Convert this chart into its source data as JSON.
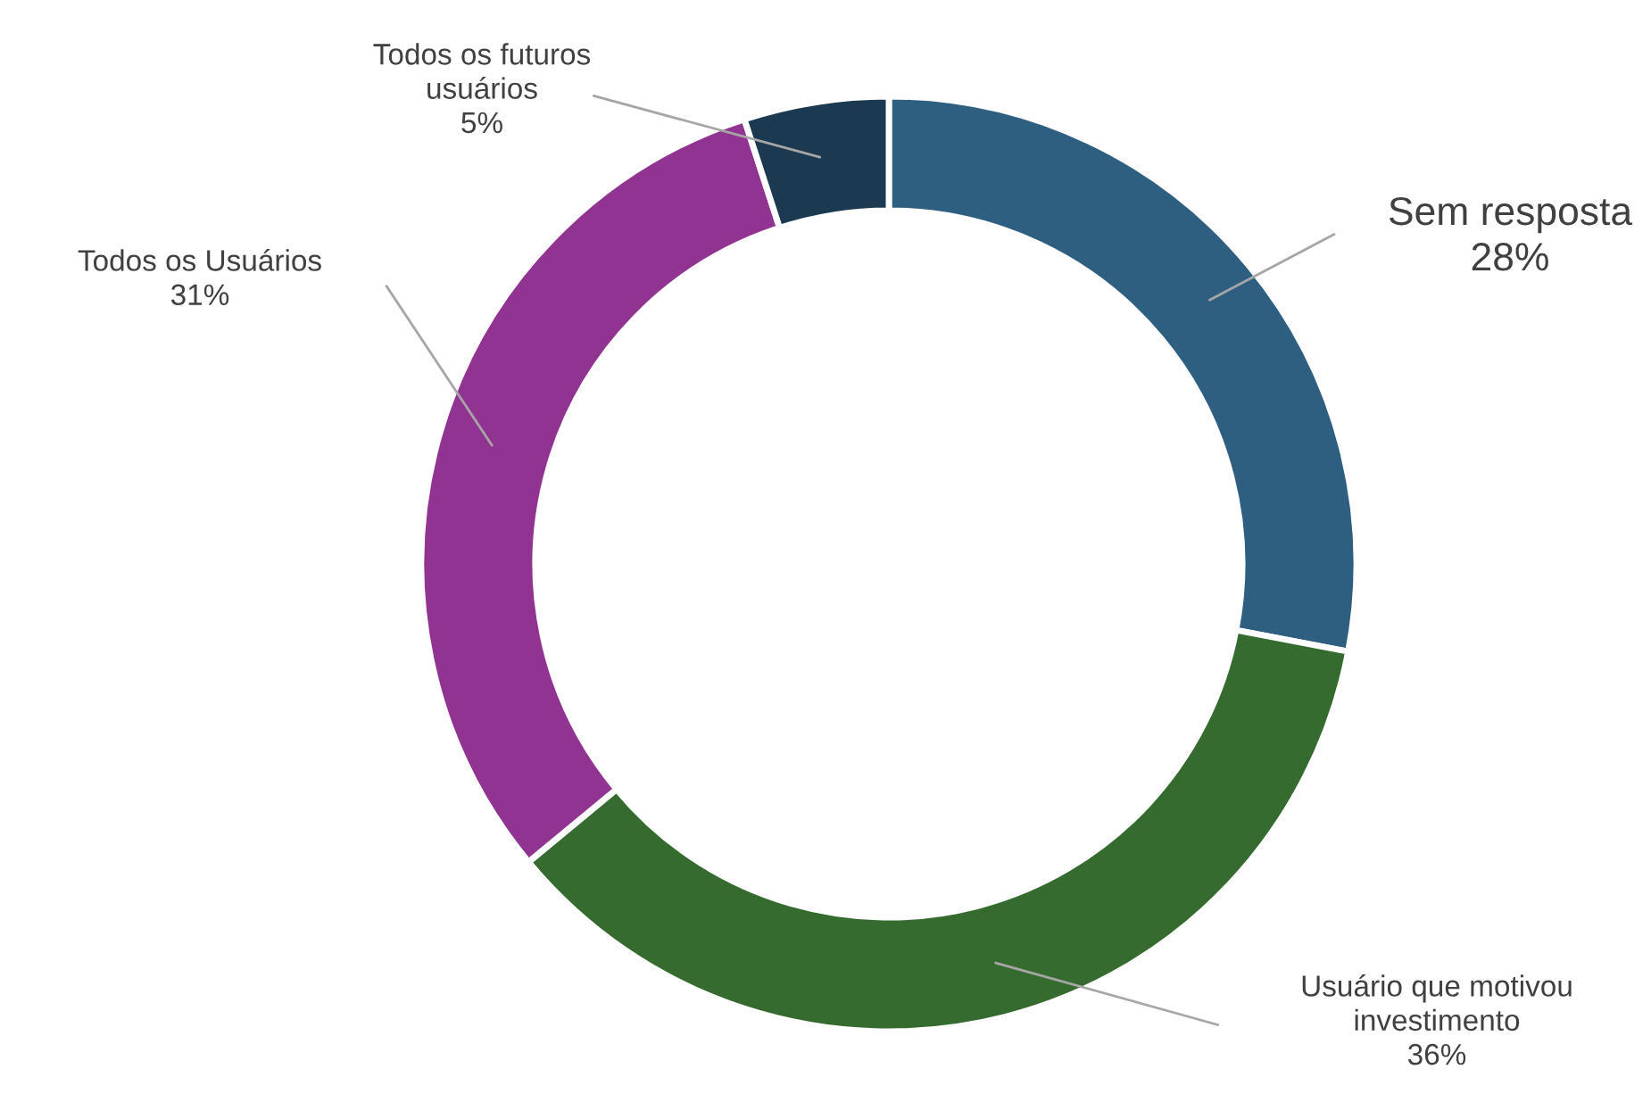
{
  "chart_data": {
    "type": "donut",
    "categories": [
      "Sem resposta",
      "Usuário que motivou investimento",
      "Todos os Usuários",
      "Todos os futuros usuários"
    ],
    "values": [
      28,
      36,
      31,
      5
    ],
    "colors": [
      "#2e5f80",
      "#356b2e",
      "#913391",
      "#1b3a52"
    ],
    "value_labels": [
      "28%",
      "36%",
      "31%",
      "5%"
    ],
    "legend": false
  }
}
